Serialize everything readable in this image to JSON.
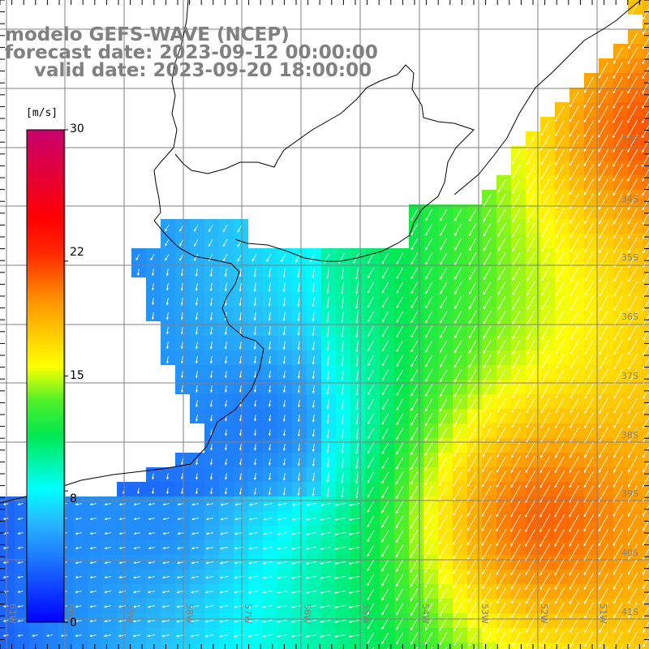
{
  "title": {
    "line1": "modelo GEFS-WAVE (NCEP)",
    "line2": "forecast date: 2023-09-12 00:00:00",
    "line3": "valid date: 2023-09-20 18:00:00"
  },
  "colorbar": {
    "unit": "[m/s]",
    "ticks": [
      "30",
      "22",
      "15",
      "8",
      "0"
    ],
    "tick_values": [
      30,
      22,
      15,
      8,
      0
    ],
    "range": [
      0,
      30
    ],
    "colors": [
      "#0000ff",
      "#0a6af0",
      "#21c8f2",
      "#00ffff",
      "#00e84a",
      "#55f028",
      "#ffff00",
      "#ffa500",
      "#ff5a00",
      "#ff0000",
      "#c8006e"
    ]
  },
  "latitude_labels": [
    "33S",
    "34S",
    "35S",
    "36S",
    "37S",
    "38S",
    "39S",
    "40S",
    "41S"
  ],
  "longitude_labels": [
    "61W",
    "60W",
    "59W",
    "58W",
    "57W",
    "56W",
    "55W",
    "54W",
    "53W",
    "52W",
    "51W"
  ]
}
